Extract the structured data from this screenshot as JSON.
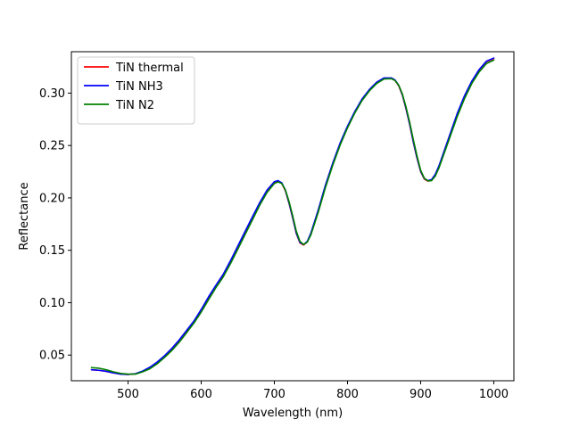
{
  "chart_data": {
    "type": "line",
    "title": "",
    "xlabel": "Wavelength (nm)",
    "ylabel": "Reflectance",
    "xlim": [
      422.5,
      1027.5
    ],
    "ylim": [
      0.0255,
      0.3395
    ],
    "xticks": [
      500,
      600,
      700,
      800,
      900,
      1000
    ],
    "yticks": [
      0.05,
      0.1,
      0.15,
      0.2,
      0.25,
      0.3
    ],
    "ytick_labels": [
      "0.05",
      "0.10",
      "0.15",
      "0.20",
      "0.25",
      "0.30"
    ],
    "grid": false,
    "legend": "upper-left",
    "series": [
      {
        "name": "TiN thermal",
        "color": "#ff0000",
        "x": [
          450,
          460,
          470,
          480,
          490,
          500,
          510,
          520,
          530,
          540,
          550,
          560,
          570,
          580,
          590,
          600,
          610,
          620,
          630,
          640,
          650,
          660,
          670,
          680,
          690,
          700,
          705,
          710,
          715,
          720,
          725,
          730,
          735,
          740,
          745,
          750,
          760,
          770,
          780,
          790,
          800,
          810,
          820,
          830,
          840,
          850,
          860,
          865,
          870,
          875,
          880,
          885,
          890,
          895,
          900,
          905,
          910,
          915,
          920,
          925,
          930,
          940,
          950,
          960,
          970,
          980,
          990,
          1000
        ],
        "y": [
          0.036,
          0.0355,
          0.0345,
          0.033,
          0.0318,
          0.0315,
          0.032,
          0.0345,
          0.038,
          0.043,
          0.049,
          0.056,
          0.064,
          0.073,
          0.082,
          0.093,
          0.105,
          0.116,
          0.126,
          0.139,
          0.153,
          0.167,
          0.181,
          0.195,
          0.207,
          0.215,
          0.216,
          0.214,
          0.207,
          0.195,
          0.181,
          0.166,
          0.157,
          0.155,
          0.158,
          0.166,
          0.188,
          0.212,
          0.233,
          0.252,
          0.268,
          0.282,
          0.294,
          0.303,
          0.31,
          0.314,
          0.314,
          0.312,
          0.307,
          0.298,
          0.285,
          0.27,
          0.253,
          0.238,
          0.225,
          0.218,
          0.216,
          0.217,
          0.222,
          0.23,
          0.24,
          0.26,
          0.28,
          0.297,
          0.311,
          0.322,
          0.33,
          0.333
        ]
      },
      {
        "name": "TiN NH3",
        "color": "#0000ff",
        "x": [
          450,
          460,
          470,
          480,
          490,
          500,
          510,
          520,
          530,
          540,
          550,
          560,
          570,
          580,
          590,
          600,
          610,
          620,
          630,
          640,
          650,
          660,
          670,
          680,
          690,
          700,
          705,
          710,
          715,
          720,
          725,
          730,
          735,
          740,
          745,
          750,
          760,
          770,
          780,
          790,
          800,
          810,
          820,
          830,
          840,
          850,
          860,
          865,
          870,
          875,
          880,
          885,
          890,
          895,
          900,
          905,
          910,
          915,
          920,
          925,
          930,
          940,
          950,
          960,
          970,
          980,
          990,
          1000
        ],
        "y": [
          0.036,
          0.0355,
          0.0345,
          0.033,
          0.0318,
          0.0315,
          0.0322,
          0.0348,
          0.0385,
          0.0435,
          0.0495,
          0.0565,
          0.0645,
          0.0735,
          0.0825,
          0.0935,
          0.1055,
          0.1165,
          0.127,
          0.14,
          0.154,
          0.168,
          0.182,
          0.1955,
          0.2075,
          0.2155,
          0.2165,
          0.2145,
          0.2075,
          0.1955,
          0.1815,
          0.1665,
          0.1575,
          0.1555,
          0.1585,
          0.1665,
          0.1885,
          0.2125,
          0.2335,
          0.2525,
          0.2685,
          0.2825,
          0.2945,
          0.3035,
          0.3105,
          0.3145,
          0.3145,
          0.3125,
          0.3075,
          0.2985,
          0.2855,
          0.2705,
          0.2535,
          0.2385,
          0.2255,
          0.2185,
          0.2165,
          0.2175,
          0.2225,
          0.2305,
          0.2405,
          0.2605,
          0.2805,
          0.2975,
          0.3115,
          0.3225,
          0.3305,
          0.3335
        ]
      },
      {
        "name": "TiN N2",
        "color": "#008000",
        "x": [
          450,
          460,
          470,
          480,
          490,
          500,
          510,
          520,
          530,
          540,
          550,
          560,
          570,
          580,
          590,
          600,
          610,
          620,
          630,
          640,
          650,
          660,
          670,
          680,
          690,
          700,
          705,
          710,
          715,
          720,
          725,
          730,
          735,
          740,
          745,
          750,
          760,
          770,
          780,
          790,
          800,
          810,
          820,
          830,
          840,
          850,
          860,
          865,
          870,
          875,
          880,
          885,
          890,
          895,
          900,
          905,
          910,
          915,
          920,
          925,
          930,
          940,
          950,
          960,
          970,
          980,
          990,
          1000
        ],
        "y": [
          0.038,
          0.0375,
          0.036,
          0.034,
          0.0325,
          0.0318,
          0.0318,
          0.034,
          0.037,
          0.0418,
          0.0478,
          0.0545,
          0.0623,
          0.0712,
          0.0805,
          0.091,
          0.1028,
          0.1142,
          0.1245,
          0.1372,
          0.151,
          0.165,
          0.179,
          0.193,
          0.2052,
          0.2138,
          0.2152,
          0.2138,
          0.2078,
          0.1968,
          0.1832,
          0.1682,
          0.1585,
          0.1555,
          0.1578,
          0.1648,
          0.1862,
          0.2102,
          0.2315,
          0.2505,
          0.2668,
          0.281,
          0.293,
          0.3022,
          0.3092,
          0.3135,
          0.3138,
          0.312,
          0.3075,
          0.2992,
          0.2868,
          0.2722,
          0.2555,
          0.2402,
          0.2265,
          0.2188,
          0.2162,
          0.2165,
          0.2208,
          0.2285,
          0.2382,
          0.2578,
          0.2775,
          0.2948,
          0.3092,
          0.3202,
          0.3282,
          0.3315
        ]
      }
    ]
  }
}
